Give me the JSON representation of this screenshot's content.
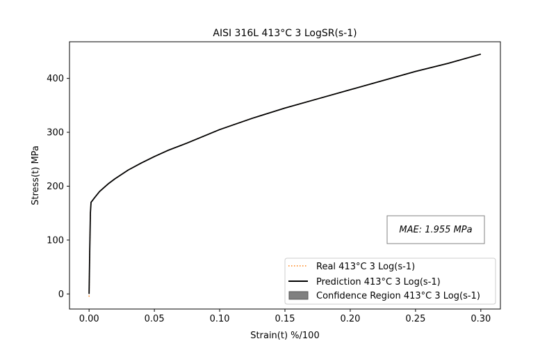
{
  "chart_data": {
    "type": "line",
    "title": "AISI 316L 413°C 3 LogSR(s-1)",
    "xlabel": "Strain(t) %/100",
    "ylabel": "Stress(t) MPa",
    "xlim": [
      -0.015,
      0.315
    ],
    "ylim": [
      -28,
      468
    ],
    "xticks": [
      0.0,
      0.05,
      0.1,
      0.15,
      0.2,
      0.25,
      0.3
    ],
    "xtick_labels": [
      "0.00",
      "0.05",
      "0.10",
      "0.15",
      "0.20",
      "0.25",
      "0.30"
    ],
    "yticks": [
      0,
      100,
      200,
      300,
      400
    ],
    "ytick_labels": [
      "0",
      "100",
      "200",
      "300",
      "400"
    ],
    "grid": false,
    "legend_position": "lower-right",
    "annotation": "MAE: 1.955 MPa",
    "series": [
      {
        "name": "Real 413°C 3 Log(s-1)",
        "style": "dotted",
        "color": "#ff7f0e",
        "x": [
          0.0,
          0.0005,
          0.001,
          0.0015,
          0.004,
          0.008,
          0.015,
          0.02,
          0.03,
          0.04,
          0.05,
          0.06,
          0.075,
          0.1,
          0.125,
          0.15,
          0.175,
          0.2,
          0.225,
          0.25,
          0.275,
          0.3
        ],
        "y": [
          -5,
          80,
          150,
          170,
          178,
          190,
          205,
          214,
          230,
          243,
          255,
          266,
          280,
          305,
          326,
          345,
          362,
          379,
          396,
          413,
          428,
          445
        ]
      },
      {
        "name": "Prediction 413°C 3 Log(s-1)",
        "style": "solid",
        "color": "#000000",
        "x": [
          0.0,
          0.0005,
          0.001,
          0.0015,
          0.004,
          0.008,
          0.015,
          0.02,
          0.03,
          0.04,
          0.05,
          0.06,
          0.075,
          0.1,
          0.125,
          0.15,
          0.175,
          0.2,
          0.225,
          0.25,
          0.275,
          0.3
        ],
        "y": [
          0,
          80,
          150,
          170,
          178,
          190,
          205,
          214,
          230,
          243,
          255,
          266,
          280,
          305,
          326,
          345,
          362,
          379,
          396,
          413,
          428,
          445
        ]
      },
      {
        "name": "Confidence Region 413°C 3 Log(s-1)",
        "style": "band",
        "color": "#808080",
        "x": [
          0.0,
          0.0005,
          0.001,
          0.0015,
          0.004,
          0.008,
          0.015,
          0.02,
          0.03,
          0.04,
          0.05,
          0.06,
          0.075,
          0.1,
          0.125,
          0.15,
          0.175,
          0.2,
          0.225,
          0.25,
          0.275,
          0.3
        ],
        "lower": [
          -6,
          79,
          149,
          169,
          177,
          189,
          204,
          213,
          229,
          242,
          254,
          265,
          279,
          304,
          325,
          344,
          361,
          378,
          395,
          412,
          427,
          444
        ],
        "upper": [
          1,
          81,
          151,
          171,
          179,
          191,
          206,
          215,
          231,
          244,
          256,
          267,
          281,
          306,
          327,
          346,
          363,
          380,
          397,
          414,
          429,
          446
        ]
      }
    ]
  }
}
